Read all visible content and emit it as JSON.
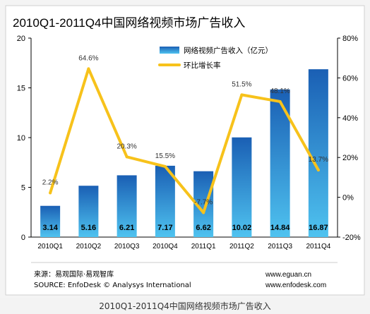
{
  "caption": "2010Q1-2011Q4中国网络视频市场广告收入",
  "chart_data": {
    "type": "bar",
    "title": "2010Q1-2011Q4中国网络视频市场广告收入",
    "categories": [
      "2010Q1",
      "2010Q2",
      "2010Q3",
      "2010Q4",
      "2011Q1",
      "2011Q2",
      "2011Q3",
      "2011Q4"
    ],
    "series": [
      {
        "name": "网络视频广告收入（亿元）",
        "type": "bar",
        "axis": "left",
        "values": [
          3.14,
          5.16,
          6.21,
          7.17,
          6.62,
          10.02,
          14.84,
          16.87
        ],
        "labels": [
          "3.14",
          "5.16",
          "6.21",
          "7.17",
          "6.62",
          "10.02",
          "14.84",
          "16.87"
        ]
      },
      {
        "name": "环比增长率",
        "type": "line",
        "axis": "right",
        "values": [
          2.2,
          64.6,
          20.3,
          15.5,
          -7.7,
          51.5,
          48.1,
          13.7
        ],
        "labels": [
          "2.2%",
          "64.6%",
          "20.3%",
          "15.5%",
          "-7.7%",
          "51.5%",
          "48.1%",
          "13.7%"
        ]
      }
    ],
    "y_left": {
      "ylim": [
        0,
        20
      ],
      "ticks": [
        "0",
        "5",
        "10",
        "15",
        "20"
      ]
    },
    "y_right": {
      "ylim": [
        -20,
        80
      ],
      "ticks": [
        "-20%",
        "0%",
        "20%",
        "40%",
        "60%",
        "80%"
      ]
    },
    "legend_position": "top-center",
    "grid": false,
    "source_lines": [
      "来源：易观国际·易观智库",
      "SOURCE: EnfoDesk © Analysys International"
    ],
    "website_lines": [
      "www.eguan.cn",
      "www.enfodesk.com"
    ],
    "colors": {
      "bar_top": "#1a5fb4",
      "bar_bottom": "#4fc3f0",
      "line": "#f7c21b",
      "line_label": "#333333",
      "title_text": "#000000",
      "source_text": "#000000",
      "panel_bg": "#ffffff",
      "page_bg": "#f4f4f4"
    }
  }
}
